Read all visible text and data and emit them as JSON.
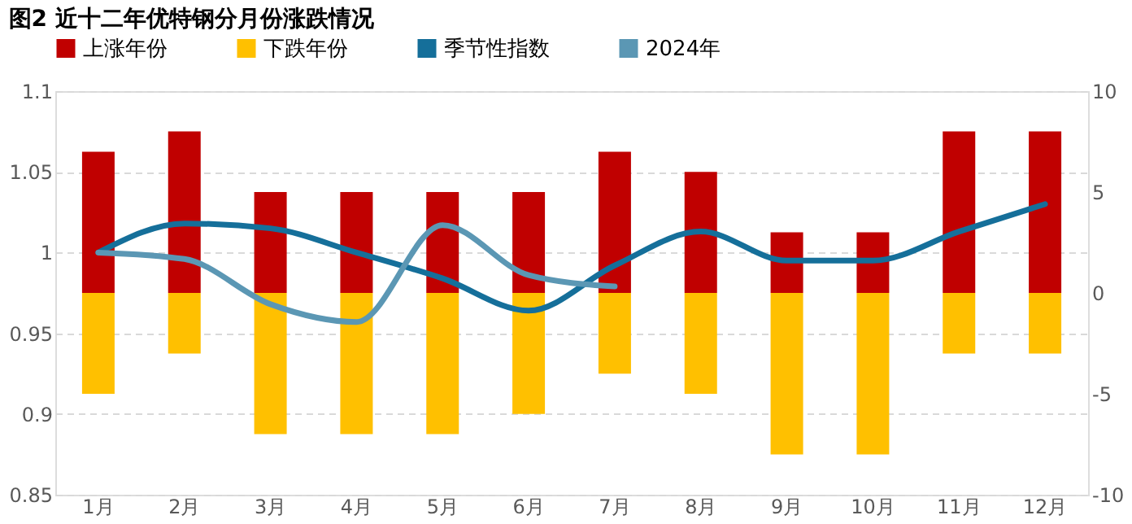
{
  "chart_data": {
    "type": "bar",
    "title": "图2 近十二年优特钢分月份涨跌情况",
    "categories": [
      "1月",
      "2月",
      "3月",
      "4月",
      "5月",
      "6月",
      "7月",
      "8月",
      "9月",
      "10月",
      "11月",
      "12月"
    ],
    "stacked": true,
    "series": [
      {
        "name": "上涨年份",
        "axis": "y2",
        "color": "#c00000",
        "values": [
          7,
          8,
          5,
          5,
          5,
          5,
          7,
          6,
          3,
          3,
          8,
          8
        ]
      },
      {
        "name": "下跌年份",
        "axis": "y2",
        "color": "#ffc000",
        "values": [
          -5,
          -3,
          -7,
          -7,
          -7,
          -6,
          -4,
          -5,
          -8,
          -8,
          -3,
          -3
        ]
      },
      {
        "name": "季节性指数",
        "type": "line",
        "axis": "y",
        "color": "#156f9a",
        "values": [
          1.0,
          1.018,
          1.015,
          1.0,
          0.984,
          0.964,
          0.992,
          1.013,
          0.995,
          0.995,
          1.013,
          1.03
        ]
      },
      {
        "name": "2024年",
        "type": "line",
        "axis": "y",
        "color": "#5b97b4",
        "values": [
          1.0,
          0.996,
          0.968,
          0.957,
          1.017,
          0.986,
          0.979,
          null,
          null,
          null,
          null,
          null
        ]
      }
    ],
    "ylim": [
      0.85,
      1.1
    ],
    "yticks": [
      0.85,
      0.9,
      0.95,
      1,
      1.05,
      1.1
    ],
    "y2lim": [
      -10,
      10
    ],
    "y2ticks": [
      -10,
      -5,
      0,
      5,
      10
    ],
    "grid": "y",
    "legend": "top",
    "marker": "none",
    "line_style": "solid"
  }
}
